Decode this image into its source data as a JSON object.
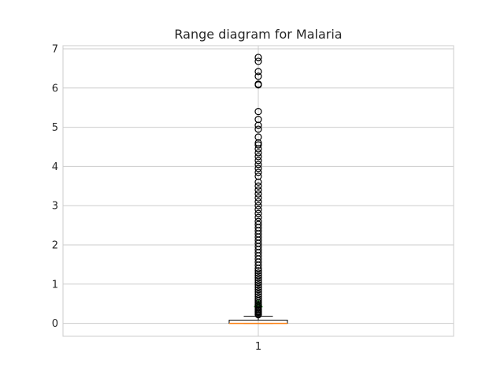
{
  "chart_data": {
    "type": "box",
    "title": "Range diagram for Malaria",
    "xlabel": "",
    "ylabel": "",
    "categories": [
      "1"
    ],
    "ylim": [
      -0.33,
      7.08
    ],
    "yticks": [
      0,
      1,
      2,
      3,
      4,
      5,
      6,
      7
    ],
    "grid": true,
    "box": {
      "whisker_low": 0,
      "q1": 0,
      "median": 0,
      "q3": 0.08,
      "whisker_high": 0.18,
      "mean": 0.5
    },
    "outliers": [
      0.22,
      0.25,
      0.28,
      0.3,
      0.33,
      0.36,
      0.4,
      0.44,
      0.48,
      0.52,
      0.57,
      0.62,
      0.68,
      0.74,
      0.8,
      0.86,
      0.92,
      0.98,
      1.04,
      1.1,
      1.16,
      1.22,
      1.28,
      1.34,
      1.4,
      1.48,
      1.56,
      1.64,
      1.72,
      1.8,
      1.88,
      1.96,
      2.04,
      2.12,
      2.2,
      2.28,
      2.36,
      2.44,
      2.52,
      2.6,
      2.7,
      2.8,
      2.9,
      3.0,
      3.1,
      3.2,
      3.3,
      3.4,
      3.5,
      3.6,
      3.75,
      3.85,
      3.95,
      4.05,
      4.15,
      4.25,
      4.35,
      4.45,
      4.55,
      4.6,
      4.75,
      4.95,
      5.05,
      5.2,
      5.4,
      6.08,
      6.1,
      6.3,
      6.42,
      6.68,
      6.78
    ]
  },
  "colors": {
    "grid": "#cccccc",
    "spine": "#cccccc",
    "text": "#262626",
    "box": "#000000",
    "median": "#ff7f0e",
    "mean": "#2ca02c",
    "outlier": "#000000"
  }
}
